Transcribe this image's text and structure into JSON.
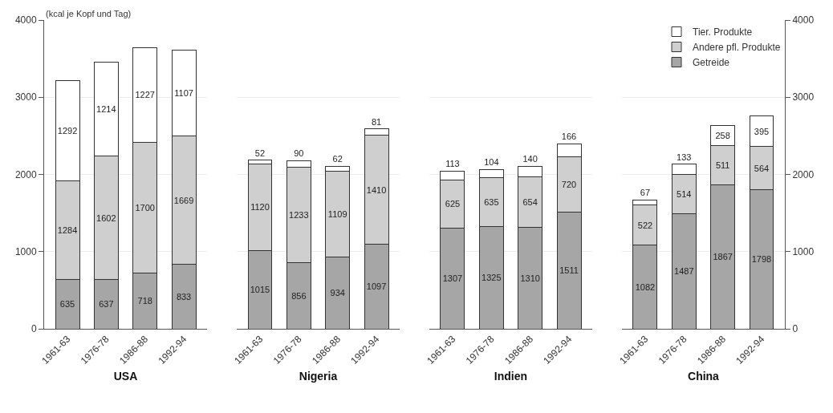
{
  "chart_data": [
    {
      "type": "bar",
      "stacked": true,
      "xlabel": "USA",
      "ylabel": "(kcal je Kopf und Tag)",
      "categories": [
        "1961-63",
        "1976-78",
        "1986-88",
        "1992-94"
      ],
      "ylim": [
        0,
        4000
      ],
      "yticks": [
        0,
        1000,
        2000,
        3000,
        4000
      ],
      "grid": "y",
      "data_labels": true,
      "series": [
        {
          "color": "#a6a6a6",
          "values": [
            635,
            637,
            718,
            833
          ]
        },
        {
          "color": "#cfcfcf",
          "values": [
            1284,
            1602,
            1700,
            1669
          ]
        },
        {
          "color": "#ffffff",
          "values": [
            1292,
            1214,
            1227,
            1107
          ]
        }
      ]
    },
    {
      "type": "bar",
      "stacked": true,
      "xlabel": "Nigeria",
      "categories": [
        "1961-63",
        "1976-78",
        "1986-88",
        "1992-94"
      ],
      "ylim": [
        0,
        4000
      ],
      "yticks": [
        0,
        1000,
        2000,
        3000,
        4000
      ],
      "grid": "y",
      "data_labels": true,
      "tick_labels": "x",
      "series": [
        {
          "color": "#a6a6a6",
          "values": [
            1015,
            856,
            934,
            1097
          ]
        },
        {
          "color": "#cfcfcf",
          "values": [
            1120,
            1233,
            1109,
            1410
          ]
        },
        {
          "color": "#ffffff",
          "values": [
            52,
            90,
            62,
            81
          ]
        }
      ]
    },
    {
      "type": "bar",
      "stacked": true,
      "xlabel": "Indien",
      "categories": [
        "1961-63",
        "1976-78",
        "1986-88",
        "1992-94"
      ],
      "ylim": [
        0,
        4000
      ],
      "yticks": [
        0,
        1000,
        2000,
        3000,
        4000
      ],
      "grid": "y",
      "data_labels": true,
      "tick_labels": "x",
      "series": [
        {
          "color": "#a6a6a6",
          "values": [
            1307,
            1325,
            1310,
            1511
          ]
        },
        {
          "color": "#cfcfcf",
          "values": [
            625,
            635,
            654,
            720
          ]
        },
        {
          "color": "#ffffff",
          "values": [
            113,
            104,
            140,
            166
          ]
        }
      ]
    },
    {
      "type": "bar",
      "stacked": true,
      "xlabel": "China",
      "categories": [
        "1961-63",
        "1976-78",
        "1986-88",
        "1992-94"
      ],
      "ylim": [
        0,
        4000
      ],
      "yticks": [
        0,
        1000,
        2000,
        3000,
        4000
      ],
      "grid": "y",
      "data_labels": true,
      "legend": "top right",
      "series": [
        {
          "name": "Getreide",
          "color": "#a6a6a6",
          "values": [
            1082,
            1487,
            1867,
            1798
          ]
        },
        {
          "name": "Andere pfl. Produkte",
          "color": "#cfcfcf",
          "values": [
            522,
            514,
            511,
            564
          ]
        },
        {
          "name": "Tier. Produkte",
          "color": "#ffffff",
          "values": [
            67,
            133,
            258,
            395
          ]
        }
      ]
    }
  ]
}
